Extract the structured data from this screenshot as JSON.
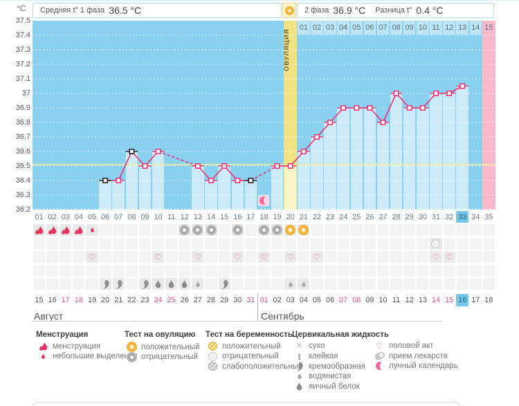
{
  "header": {
    "y_axis_unit": "°C",
    "phase1_label": "Средняя t° 1 фаза",
    "phase1_value": "36.5 °C",
    "phase2_label": "2 фаза",
    "phase2_value": "36.9 °C",
    "diff_label": "Разница t°",
    "diff_value": "0.4 °C",
    "ovulation_column_label": "ОВУЛЯЦИЯ",
    "ovulation_header_icon": "sun-positive-test-icon"
  },
  "chart_data": {
    "type": "line",
    "title": "Basal body temperature cycle chart",
    "ylabel": "°C",
    "ylim": [
      36.2,
      37.5
    ],
    "y_ticks": [
      "37.5",
      "37.4",
      "37.3",
      "37.2",
      "37.1",
      "37",
      "36.9",
      "36.8",
      "36.7",
      "36.6",
      "36.5",
      "36.4",
      "36.3",
      "36.2"
    ],
    "grid": "dotted-white-per-0.1",
    "x_cycle_days": [
      "01",
      "02",
      "03",
      "04",
      "05",
      "06",
      "07",
      "08",
      "09",
      "10",
      "11",
      "12",
      "13",
      "14",
      "15",
      "16",
      "17",
      "18",
      "19",
      "20",
      "21",
      "22",
      "23",
      "24",
      "25",
      "26",
      "27",
      "28",
      "29",
      "30",
      "31",
      "32",
      "33",
      "34",
      "35"
    ],
    "temps_by_day": [
      null,
      null,
      null,
      null,
      null,
      36.4,
      36.4,
      36.6,
      36.5,
      36.6,
      null,
      null,
      36.5,
      36.4,
      36.5,
      36.4,
      36.4,
      null,
      36.5,
      36.5,
      36.6,
      36.7,
      36.8,
      36.9,
      36.9,
      36.9,
      36.8,
      37.0,
      36.9,
      36.9,
      37.0,
      37.0,
      37.05,
      null,
      null
    ],
    "black_marker_days": [
      6,
      8,
      17
    ],
    "coverline_temp": 36.51,
    "ovulation_day": 20,
    "current_cycle_day": 33,
    "predicted_period_day": 35,
    "moon_marker_day": 18,
    "dpo_row": {
      "start_day": 21,
      "labels": [
        "01",
        "02",
        "03",
        "04",
        "05",
        "06",
        "07",
        "08",
        "09",
        "10",
        "11",
        "12",
        "13",
        "14",
        "15"
      ],
      "pink_label": "15"
    },
    "legend_position": "bottom"
  },
  "events": {
    "menstruation_heavy_days": [
      1,
      2,
      3,
      4
    ],
    "menstruation_light_days": [
      5
    ],
    "ovulation_test_negative_days": [
      12,
      13,
      14,
      16,
      18,
      19
    ],
    "ovulation_test_positive_days": [
      20,
      21
    ],
    "pregnancy_test_negative_days": [
      31
    ],
    "intercourse_days": [
      5,
      10,
      13,
      16,
      18,
      20,
      22,
      31,
      32
    ],
    "cervical_creamy_days": [
      6,
      7,
      9,
      15
    ],
    "cervical_eggwhite_days": [
      10,
      11,
      12
    ],
    "cervical_watery_days": [
      13,
      20,
      21
    ]
  },
  "calendar": {
    "dates_by_day": [
      "15",
      "16",
      "17",
      "18",
      "19",
      "20",
      "21",
      "22",
      "23",
      "24",
      "25",
      "26",
      "27",
      "28",
      "29",
      "30",
      "31",
      "01",
      "02",
      "03",
      "04",
      "05",
      "06",
      "07",
      "08",
      "09",
      "10",
      "11",
      "12",
      "13",
      "14",
      "15",
      "16",
      "17",
      "18"
    ],
    "red_date_days": [
      3,
      4,
      10,
      11,
      17,
      18,
      24,
      25,
      31,
      32
    ],
    "today_day": 33,
    "month1": "Август",
    "month2": "Сентябрь",
    "month_boundary_day": 18
  },
  "legend": {
    "groups": [
      {
        "title": "Менструация",
        "items": [
          {
            "icon": "menses-heavy-icon",
            "label": "менструация"
          },
          {
            "icon": "menses-light-icon",
            "label": "небольшие выделения"
          }
        ]
      },
      {
        "title": "Тест на овуляцию",
        "items": [
          {
            "icon": "ovulation-test-positive-icon",
            "label": "положительный"
          },
          {
            "icon": "ovulation-test-negative-icon",
            "label": "отрицательный"
          }
        ]
      },
      {
        "title": "Тест на беременность",
        "items": [
          {
            "icon": "pregnancy-test-positive-icon",
            "label": "положительный"
          },
          {
            "icon": "pregnancy-test-negative-icon",
            "label": "отрицательный"
          },
          {
            "icon": "pregnancy-test-weak-icon",
            "label": "слабоположительный"
          }
        ]
      },
      {
        "title": "Цервикальная жидкость",
        "items": [
          {
            "icon": "dry-icon",
            "label": "сухо"
          },
          {
            "icon": "sticky-icon",
            "label": "клейкая"
          },
          {
            "icon": "creamy-icon",
            "label": "кремообразная"
          },
          {
            "icon": "watery-icon",
            "label": "водянистая"
          },
          {
            "icon": "eggwhite-icon",
            "label": "яичный белок"
          }
        ]
      },
      {
        "title": "",
        "items": [
          {
            "icon": "intercourse-icon",
            "label": "половой акт"
          },
          {
            "icon": "medication-icon",
            "label": "прием лекарств"
          },
          {
            "icon": "lunar-calendar-icon",
            "label": "лунный календарь"
          }
        ]
      }
    ]
  },
  "colors": {
    "chart_bg": "#8ad1ef",
    "data_column": "#cdeaf8",
    "dpo_cell": "#bfe4f6",
    "pink_band": "#f9b9cb",
    "ovulation_col_dark": "#f2e382",
    "ovulation_col_light": "#fbf4c4",
    "coverline": "#f2ee9d",
    "temp_line": "#ee2d6e",
    "black_marker": "#1a1a1a",
    "today_highlight": "#74c7ea",
    "menses_red": "#e7325f",
    "date_red": "#ef5287",
    "moon_pink": "#f4679b",
    "moon_tile_bg": "#fbdae6"
  }
}
